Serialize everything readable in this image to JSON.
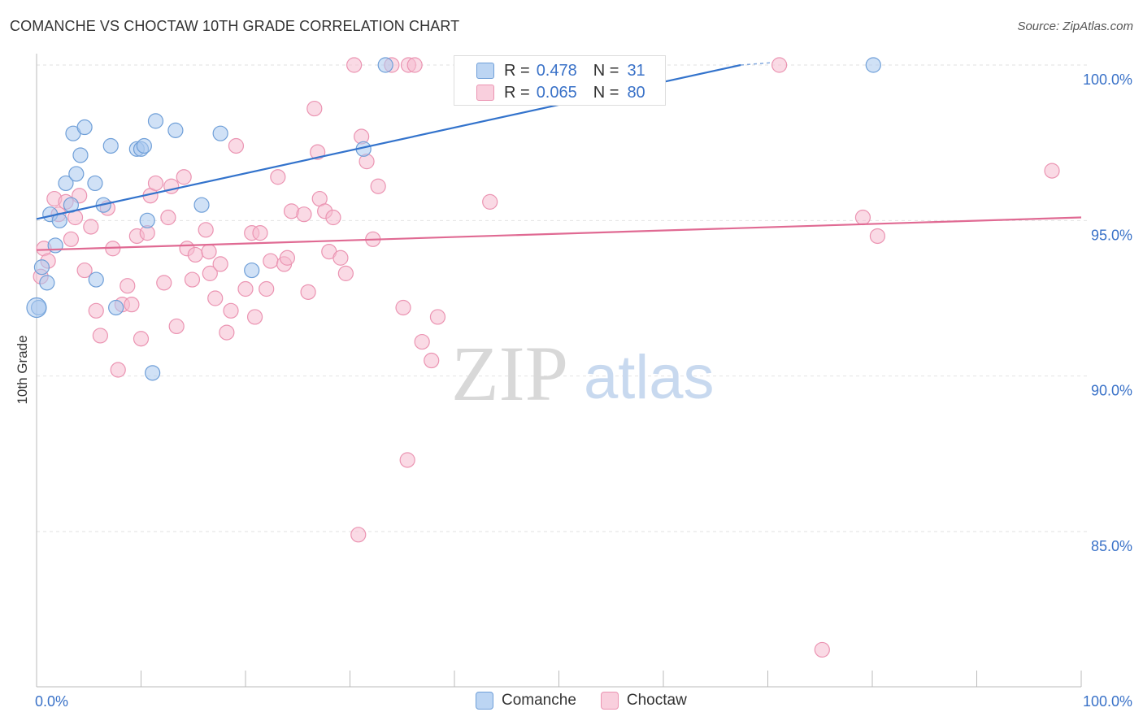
{
  "header": {
    "title": "COMANCHE VS CHOCTAW 10TH GRADE CORRELATION CHART",
    "source": "Source: ZipAtlas.com"
  },
  "watermark": {
    "zip": "ZIP",
    "atlas": "atlas"
  },
  "legend_top": {
    "rows": [
      {
        "r_label": "R =",
        "r_value": "0.478",
        "n_label": "N =",
        "n_value": "31"
      },
      {
        "r_label": "R =",
        "r_value": "0.065",
        "n_label": "N =",
        "n_value": "80"
      }
    ]
  },
  "legend_bottom": {
    "items": [
      "Comanche",
      "Choctaw"
    ]
  },
  "colors": {
    "comanche_fill": "#aac8ee",
    "comanche_stroke": "#6f9fd8",
    "comanche_line": "#3373cc",
    "choctaw_fill": "#f6bcd0",
    "choctaw_stroke": "#eb94b2",
    "choctaw_line": "#e06a93",
    "tick_label": "#3a72c8",
    "grid": "#e2e2e2"
  },
  "chart_data": {
    "type": "scatter",
    "title": "COMANCHE VS CHOCTAW 10TH GRADE CORRELATION CHART",
    "xlabel": "",
    "ylabel": "10th Grade",
    "xlim": [
      0,
      100
    ],
    "ylim": [
      80.5,
      100.8
    ],
    "x_tick_labels": [
      "0.0%",
      "100.0%"
    ],
    "y_ticks": [
      85,
      90,
      95,
      100
    ],
    "y_tick_labels": [
      "85.0%",
      "90.0%",
      "95.0%",
      "100.0%"
    ],
    "grid": true,
    "series": [
      {
        "name": "Comanche",
        "R": 0.478,
        "N": 31,
        "trend": [
          [
            0,
            95.05
          ],
          [
            67.4,
            100.0
          ]
        ],
        "points": [
          [
            0.2,
            92.2
          ],
          [
            0.5,
            93.5
          ],
          [
            1.0,
            93.0
          ],
          [
            1.3,
            95.2
          ],
          [
            1.8,
            94.2
          ],
          [
            2.2,
            95.0
          ],
          [
            2.8,
            96.2
          ],
          [
            3.3,
            95.5
          ],
          [
            3.5,
            97.8
          ],
          [
            3.8,
            96.5
          ],
          [
            4.2,
            97.1
          ],
          [
            4.6,
            98.0
          ],
          [
            5.6,
            96.2
          ],
          [
            5.7,
            93.1
          ],
          [
            6.4,
            95.5
          ],
          [
            7.1,
            97.4
          ],
          [
            7.6,
            92.2
          ],
          [
            9.6,
            97.3
          ],
          [
            10.0,
            97.3
          ],
          [
            10.3,
            97.4
          ],
          [
            10.6,
            95.0
          ],
          [
            11.1,
            90.1
          ],
          [
            11.4,
            98.2
          ],
          [
            13.3,
            97.9
          ],
          [
            15.8,
            95.5
          ],
          [
            17.6,
            97.8
          ],
          [
            20.6,
            93.4
          ],
          [
            31.3,
            97.3
          ],
          [
            33.4,
            100.0
          ],
          [
            80.1,
            100.0
          ],
          [
            0.0,
            92.2
          ]
        ]
      },
      {
        "name": "Choctaw",
        "R": 0.065,
        "N": 80,
        "trend": [
          [
            0,
            94.05
          ],
          [
            100,
            95.1
          ]
        ],
        "points": [
          [
            0.4,
            93.2
          ],
          [
            0.7,
            94.1
          ],
          [
            1.1,
            93.7
          ],
          [
            1.7,
            95.7
          ],
          [
            2.1,
            95.2
          ],
          [
            2.8,
            95.6
          ],
          [
            3.3,
            94.4
          ],
          [
            3.7,
            95.1
          ],
          [
            4.1,
            95.8
          ],
          [
            4.6,
            93.4
          ],
          [
            5.2,
            94.8
          ],
          [
            5.7,
            92.1
          ],
          [
            6.1,
            91.3
          ],
          [
            6.8,
            95.4
          ],
          [
            7.3,
            94.1
          ],
          [
            7.8,
            90.2
          ],
          [
            8.2,
            92.3
          ],
          [
            8.7,
            92.9
          ],
          [
            9.1,
            92.3
          ],
          [
            9.6,
            94.5
          ],
          [
            10.0,
            91.2
          ],
          [
            10.6,
            94.6
          ],
          [
            10.9,
            95.8
          ],
          [
            11.4,
            96.2
          ],
          [
            12.2,
            93.0
          ],
          [
            12.6,
            95.1
          ],
          [
            12.9,
            96.1
          ],
          [
            13.4,
            91.6
          ],
          [
            14.1,
            96.4
          ],
          [
            14.4,
            94.1
          ],
          [
            14.9,
            93.1
          ],
          [
            15.2,
            93.9
          ],
          [
            16.2,
            94.7
          ],
          [
            16.6,
            93.3
          ],
          [
            17.1,
            92.5
          ],
          [
            17.6,
            93.6
          ],
          [
            18.2,
            91.4
          ],
          [
            18.6,
            92.1
          ],
          [
            19.1,
            97.4
          ],
          [
            20.0,
            92.8
          ],
          [
            20.6,
            94.6
          ],
          [
            20.9,
            91.9
          ],
          [
            21.4,
            94.6
          ],
          [
            22.0,
            92.8
          ],
          [
            22.4,
            93.7
          ],
          [
            23.1,
            96.4
          ],
          [
            23.7,
            93.6
          ],
          [
            24.0,
            93.8
          ],
          [
            24.4,
            95.3
          ],
          [
            25.6,
            95.2
          ],
          [
            26.0,
            92.7
          ],
          [
            26.6,
            98.6
          ],
          [
            26.9,
            97.2
          ],
          [
            27.1,
            95.7
          ],
          [
            27.6,
            95.3
          ],
          [
            28.0,
            94.0
          ],
          [
            28.4,
            95.1
          ],
          [
            29.1,
            93.8
          ],
          [
            29.6,
            93.3
          ],
          [
            30.4,
            100.0
          ],
          [
            31.1,
            97.7
          ],
          [
            31.6,
            96.9
          ],
          [
            32.2,
            94.4
          ],
          [
            32.7,
            96.1
          ],
          [
            34.0,
            100.0
          ],
          [
            35.1,
            92.2
          ],
          [
            35.6,
            100.0
          ],
          [
            36.2,
            100.0
          ],
          [
            36.9,
            91.1
          ],
          [
            37.8,
            90.5
          ],
          [
            38.4,
            91.9
          ],
          [
            30.8,
            84.9
          ],
          [
            35.5,
            87.3
          ],
          [
            43.4,
            95.6
          ],
          [
            71.1,
            100.0
          ],
          [
            75.2,
            81.2
          ],
          [
            79.1,
            95.1
          ],
          [
            80.5,
            94.5
          ],
          [
            97.2,
            96.6
          ],
          [
            16.5,
            94.0
          ]
        ]
      }
    ]
  }
}
